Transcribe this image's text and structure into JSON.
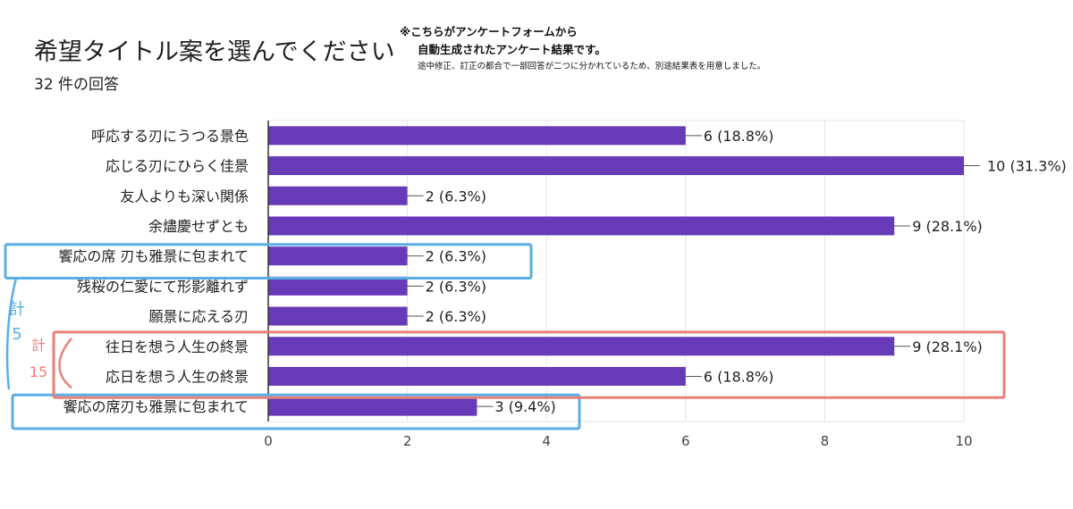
{
  "header": {
    "title": "希望タイトル案を選んでください",
    "response_count": "32 件の回答",
    "note_line1": "※こちらがアンケートフォームから",
    "note_line2": "自動生成されたアンケート結果です。",
    "note_line3": "途中修正、訂正の都合で一部回答が二つに分かれているため、別途結果表を用意しました。"
  },
  "annotations": {
    "blue_total": "計5",
    "red_total": "計15"
  },
  "colors": {
    "bar": "#673ab7",
    "blue_box": "#5aaee3",
    "red_box": "#e8807a",
    "grid": "#e6e6e6"
  },
  "chart_data": {
    "type": "bar",
    "orientation": "horizontal",
    "categories": [
      "呼応する刃にうつる景色",
      "応じる刃にひらく佳景",
      "友人よりも深い関係",
      "余燼慶せずとも",
      "饗応の席 刃も雅景に包まれて",
      "残桜の仁愛にて形影離れず",
      "願景に応える刃",
      "往日を想う人生の終景",
      "応日を想う人生の終景",
      "饗応の席刃も雅景に包まれて"
    ],
    "values": [
      6,
      10,
      2,
      9,
      2,
      2,
      2,
      9,
      6,
      3
    ],
    "value_labels": [
      "6 (18.8%)",
      "10 (31.3%)",
      "2 (6.3%)",
      "9 (28.1%)",
      "2 (6.3%)",
      "2 (6.3%)",
      "2 (6.3%)",
      "9 (28.1%)",
      "6 (18.8%)",
      "3 (9.4%)"
    ],
    "xticks": [
      "0",
      "2",
      "4",
      "6",
      "8",
      "10"
    ],
    "xlim": [
      0,
      10
    ],
    "grid": true
  }
}
